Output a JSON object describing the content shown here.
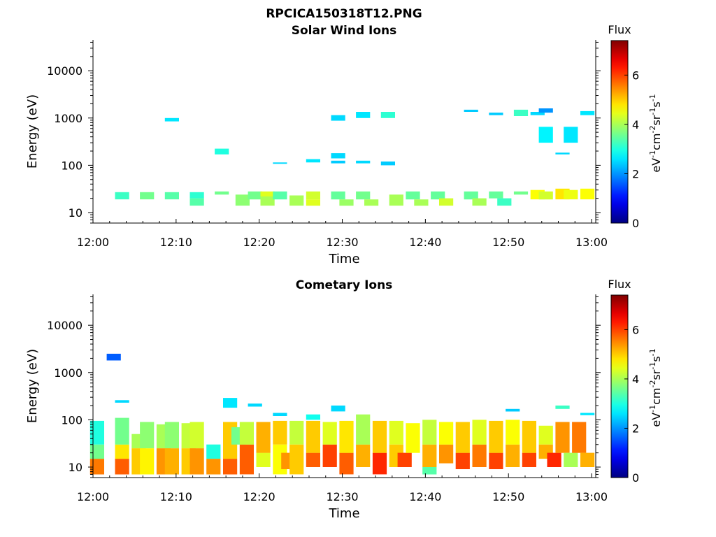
{
  "figure": {
    "filename": "RPCICA150318T12.PNG"
  },
  "chart_data": [
    {
      "type": "heatmap",
      "title": "Solar Wind Ions",
      "xlabel": "Time",
      "ylabel": "Energy (eV)",
      "yscale": "log",
      "x_ticks": [
        "12:00",
        "12:10",
        "12:20",
        "12:30",
        "12:40",
        "12:50",
        "13:00"
      ],
      "y_ticks": [
        "10",
        "100",
        "1000",
        "10000"
      ],
      "xlim": [
        "12:00",
        "13:00"
      ],
      "ylim": [
        6,
        45000
      ],
      "colorbar": {
        "label": "Flux",
        "unit_label": "eV-1cm-2sr-1s-1",
        "range": [
          0,
          7.4
        ],
        "ticks": [
          "0",
          "2",
          "4",
          "6"
        ]
      },
      "cells": [
        [
          "12:03:30",
          19,
          27,
          3.2
        ],
        [
          "12:06:30",
          19,
          27,
          3.6
        ],
        [
          "12:09:30",
          19,
          27,
          3.4
        ],
        [
          "12:09:30",
          850,
          1000,
          2.6
        ],
        [
          "12:12:30",
          14,
          20,
          3.4
        ],
        [
          "12:12:30",
          20,
          27,
          3.1
        ],
        [
          "12:15:30",
          170,
          225,
          3.0
        ],
        [
          "12:15:30",
          24,
          28,
          3.6
        ],
        [
          "12:18:00",
          14,
          24,
          3.8
        ],
        [
          "12:19:30",
          19,
          28,
          3.6
        ],
        [
          "12:21:00",
          14,
          24,
          4.0
        ],
        [
          "12:21:00",
          22,
          28,
          4.4
        ],
        [
          "12:22:30",
          19,
          28,
          3.4
        ],
        [
          "12:22:30",
          108,
          115,
          2.5
        ],
        [
          "12:24:30",
          14,
          23,
          4.0
        ],
        [
          "12:26:30",
          115,
          135,
          2.6
        ],
        [
          "12:26:30",
          19,
          28,
          4.3
        ],
        [
          "12:26:30",
          14,
          19,
          4.4
        ],
        [
          "12:29:30",
          110,
          125,
          2.4
        ],
        [
          "12:29:30",
          140,
          180,
          2.5
        ],
        [
          "12:29:30",
          880,
          1150,
          2.5
        ],
        [
          "12:29:30",
          19,
          28,
          3.5
        ],
        [
          "12:30:30",
          14,
          19,
          3.9
        ],
        [
          "12:32:30",
          110,
          125,
          2.5
        ],
        [
          "12:32:30",
          1000,
          1350,
          2.6
        ],
        [
          "12:32:30",
          19,
          28,
          3.6
        ],
        [
          "12:33:30",
          14,
          19,
          4.0
        ],
        [
          "12:35:30",
          100,
          120,
          2.4
        ],
        [
          "12:35:30",
          1000,
          1350,
          3.1
        ],
        [
          "12:36:30",
          14,
          24,
          4.0
        ],
        [
          "12:38:30",
          19,
          28,
          3.5
        ],
        [
          "12:39:30",
          14,
          19,
          4.0
        ],
        [
          "12:41:30",
          19,
          28,
          3.5
        ],
        [
          "12:42:30",
          14,
          20,
          4.3
        ],
        [
          "12:45:30",
          1350,
          1500,
          2.4
        ],
        [
          "12:45:30",
          19,
          28,
          3.5
        ],
        [
          "12:46:30",
          14,
          20,
          4.0
        ],
        [
          "12:48:30",
          1150,
          1300,
          2.4
        ],
        [
          "12:48:30",
          20,
          28,
          3.5
        ],
        [
          "12:49:30",
          14,
          20,
          3.2
        ],
        [
          "12:51:30",
          1100,
          1500,
          3.2
        ],
        [
          "12:51:30",
          24,
          28,
          3.6
        ],
        [
          "12:53:30",
          1150,
          1350,
          2.5
        ],
        [
          "12:53:30",
          19,
          30,
          4.6
        ],
        [
          "12:54:30",
          300,
          650,
          2.7
        ],
        [
          "12:54:30",
          1300,
          1600,
          2.0
        ],
        [
          "12:54:30",
          19,
          28,
          4.3
        ],
        [
          "12:56:30",
          170,
          185,
          2.5
        ],
        [
          "12:56:30",
          19,
          32,
          4.8
        ],
        [
          "12:57:30",
          300,
          650,
          2.6
        ],
        [
          "12:57:30",
          19,
          30,
          4.5
        ],
        [
          "12:59:30",
          1150,
          1400,
          2.6
        ],
        [
          "12:59:30",
          19,
          32,
          4.6
        ]
      ]
    },
    {
      "type": "heatmap",
      "title": "Cometary Ions",
      "xlabel": "Time",
      "ylabel": "Energy (eV)",
      "yscale": "log",
      "x_ticks": [
        "12:00",
        "12:10",
        "12:20",
        "12:30",
        "12:40",
        "12:50",
        "13:00"
      ],
      "y_ticks": [
        "10",
        "100",
        "1000",
        "10000"
      ],
      "xlim": [
        "12:00",
        "13:00"
      ],
      "ylim": [
        6,
        45000
      ],
      "colorbar": {
        "label": "Flux",
        "unit_label": "eV-1cm-2sr-1s-1",
        "range": [
          0,
          7.4
        ],
        "ticks": [
          "0",
          "2",
          "4",
          "6"
        ]
      },
      "cells": [
        [
          "12:00:30",
          7,
          15,
          5.6
        ],
        [
          "12:00:30",
          15,
          30,
          3.6
        ],
        [
          "12:00:30",
          30,
          95,
          3.0
        ],
        [
          "12:02:30",
          1800,
          2500,
          1.6
        ],
        [
          "12:03:30",
          7,
          15,
          5.8
        ],
        [
          "12:03:30",
          15,
          30,
          4.8
        ],
        [
          "12:03:30",
          30,
          110,
          3.6
        ],
        [
          "12:03:30",
          230,
          260,
          2.5
        ],
        [
          "12:05:30",
          7,
          25,
          5.0
        ],
        [
          "12:05:30",
          25,
          50,
          4.0
        ],
        [
          "12:06:30",
          7,
          25,
          4.7
        ],
        [
          "12:06:30",
          25,
          90,
          3.8
        ],
        [
          "12:08:30",
          7,
          25,
          5.4
        ],
        [
          "12:08:30",
          25,
          80,
          4.0
        ],
        [
          "12:09:30",
          7,
          25,
          5.2
        ],
        [
          "12:09:30",
          25,
          90,
          3.8
        ],
        [
          "12:11:30",
          7,
          25,
          5.0
        ],
        [
          "12:11:30",
          25,
          85,
          4.2
        ],
        [
          "12:12:30",
          7,
          25,
          5.4
        ],
        [
          "12:12:30",
          25,
          90,
          4.3
        ],
        [
          "12:14:30",
          7,
          15,
          5.4
        ],
        [
          "12:14:30",
          15,
          30,
          3.0
        ],
        [
          "12:16:30",
          7,
          15,
          5.8
        ],
        [
          "12:16:30",
          15,
          90,
          5.0
        ],
        [
          "12:16:30",
          180,
          290,
          2.6
        ],
        [
          "12:17:30",
          30,
          70,
          3.6
        ],
        [
          "12:18:30",
          7,
          30,
          5.8
        ],
        [
          "12:18:30",
          30,
          90,
          4.2
        ],
        [
          "12:19:30",
          190,
          220,
          2.5
        ],
        [
          "12:20:30",
          10,
          20,
          4.4
        ],
        [
          "12:20:30",
          20,
          90,
          5.2
        ],
        [
          "12:22:30",
          7,
          30,
          4.6
        ],
        [
          "12:22:30",
          30,
          95,
          5.0
        ],
        [
          "12:22:30",
          120,
          140,
          2.5
        ],
        [
          "12:23:30",
          9,
          20,
          5.4
        ],
        [
          "12:24:30",
          7,
          30,
          5.0
        ],
        [
          "12:24:30",
          30,
          95,
          4.2
        ],
        [
          "12:26:30",
          10,
          20,
          5.8
        ],
        [
          "12:26:30",
          20,
          95,
          5.0
        ],
        [
          "12:26:30",
          100,
          130,
          2.9
        ],
        [
          "12:28:30",
          10,
          30,
          6.0
        ],
        [
          "12:28:30",
          30,
          90,
          4.4
        ],
        [
          "12:29:30",
          150,
          200,
          2.5
        ],
        [
          "12:30:30",
          7,
          20,
          5.8
        ],
        [
          "12:30:30",
          20,
          95,
          4.8
        ],
        [
          "12:32:30",
          10,
          30,
          5.2
        ],
        [
          "12:32:30",
          30,
          130,
          4.0
        ],
        [
          "12:34:30",
          7,
          20,
          6.2
        ],
        [
          "12:34:30",
          20,
          95,
          5.0
        ],
        [
          "12:36:30",
          10,
          30,
          5.0
        ],
        [
          "12:36:30",
          30,
          95,
          4.4
        ],
        [
          "12:37:30",
          10,
          20,
          6.0
        ],
        [
          "12:38:30",
          20,
          85,
          4.6
        ],
        [
          "12:40:30",
          7,
          10,
          3.4
        ],
        [
          "12:40:30",
          10,
          30,
          5.2
        ],
        [
          "12:40:30",
          30,
          100,
          4.2
        ],
        [
          "12:42:30",
          12,
          30,
          5.4
        ],
        [
          "12:42:30",
          30,
          90,
          4.6
        ],
        [
          "12:44:30",
          9,
          20,
          6.0
        ],
        [
          "12:44:30",
          20,
          90,
          5.0
        ],
        [
          "12:46:30",
          10,
          30,
          5.6
        ],
        [
          "12:46:30",
          30,
          100,
          4.4
        ],
        [
          "12:48:30",
          9,
          20,
          6.0
        ],
        [
          "12:48:30",
          20,
          95,
          5.0
        ],
        [
          "12:50:30",
          150,
          170,
          2.4
        ],
        [
          "12:50:30",
          10,
          30,
          5.2
        ],
        [
          "12:50:30",
          30,
          100,
          4.6
        ],
        [
          "12:52:30",
          10,
          20,
          6.0
        ],
        [
          "12:52:30",
          20,
          95,
          5.0
        ],
        [
          "12:54:30",
          15,
          30,
          5.2
        ],
        [
          "12:54:30",
          30,
          75,
          4.4
        ],
        [
          "12:55:30",
          10,
          20,
          6.2
        ],
        [
          "12:56:30",
          20,
          90,
          5.4
        ],
        [
          "12:56:30",
          170,
          200,
          3.2
        ],
        [
          "12:57:30",
          10,
          20,
          4.0
        ],
        [
          "12:58:30",
          20,
          90,
          5.6
        ],
        [
          "12:59:30",
          10,
          20,
          5.2
        ],
        [
          "12:59:30",
          125,
          140,
          2.6
        ]
      ]
    }
  ]
}
